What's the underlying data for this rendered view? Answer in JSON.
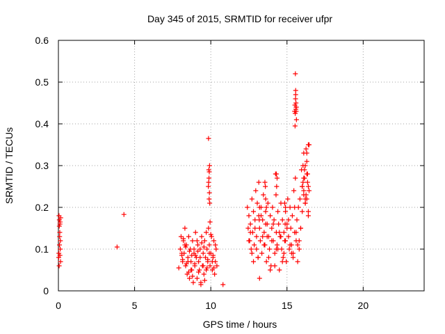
{
  "chart_data": {
    "type": "scatter",
    "title": "Day 345 of 2015, SRMTID for receiver ufpr",
    "xlabel": "GPS time / hours",
    "ylabel": "SRMTID / TECUs",
    "xlim": [
      0,
      24
    ],
    "ylim": [
      0,
      0.6
    ],
    "xticks": [
      0,
      5,
      10,
      15,
      20
    ],
    "yticks": [
      0,
      0.1,
      0.2,
      0.3,
      0.4,
      0.5,
      0.6
    ],
    "xtick_labels": [
      "0",
      "5",
      "10",
      "15",
      "20"
    ],
    "ytick_labels": [
      "0",
      "0.1",
      "0.2",
      "0.3",
      "0.4",
      "0.5",
      "0.6"
    ],
    "grid": true,
    "marker": "+",
    "color": "#ff0000",
    "series": [
      {
        "name": "SRMTID",
        "x": [
          0.02,
          0.04,
          0.06,
          0.08,
          0.1,
          0.12,
          0.14,
          0.05,
          0.07,
          0.09,
          0.11,
          0.03,
          0.13,
          0.15,
          0.06,
          0.1,
          3.85,
          4.3,
          7.9,
          8.0,
          8.05,
          8.1,
          8.15,
          8.2,
          8.25,
          8.3,
          8.35,
          8.4,
          8.45,
          8.5,
          8.55,
          8.6,
          8.65,
          8.7,
          8.75,
          8.8,
          8.85,
          8.9,
          8.95,
          9.0,
          9.05,
          9.1,
          9.15,
          9.2,
          9.25,
          9.3,
          9.35,
          9.4,
          9.45,
          9.5,
          9.55,
          9.6,
          9.65,
          9.7,
          9.75,
          9.8,
          9.85,
          9.9,
          9.95,
          10.0,
          10.05,
          10.1,
          10.15,
          10.2,
          10.25,
          10.3,
          10.35,
          10.4,
          10.8,
          8.1,
          8.3,
          8.5,
          8.7,
          8.9,
          9.1,
          9.3,
          9.5,
          9.7,
          9.9,
          10.1,
          10.3,
          8.2,
          8.4,
          8.6,
          8.8,
          9.0,
          9.2,
          9.4,
          9.6,
          9.8,
          10.0,
          10.2,
          8.15,
          8.35,
          8.55,
          8.75,
          8.95,
          9.15,
          9.35,
          9.55,
          9.75,
          9.95,
          10.15,
          9.85,
          9.87,
          9.9,
          9.92,
          9.88,
          9.86,
          9.91,
          9.89,
          9.93,
          9.84,
          12.4,
          12.45,
          12.5,
          12.55,
          12.6,
          12.65,
          12.7,
          12.75,
          12.8,
          12.85,
          12.9,
          12.95,
          13.0,
          13.05,
          13.1,
          13.15,
          13.2,
          13.25,
          13.3,
          13.35,
          13.4,
          13.45,
          13.5,
          13.55,
          13.6,
          13.65,
          13.7,
          13.75,
          13.8,
          13.85,
          13.9,
          13.95,
          14.0,
          14.05,
          14.1,
          14.15,
          14.2,
          14.25,
          14.3,
          14.35,
          14.4,
          14.45,
          14.5,
          14.55,
          14.6,
          14.65,
          14.7,
          14.75,
          14.8,
          14.85,
          14.9,
          14.95,
          15.0,
          15.05,
          15.1,
          15.15,
          15.2,
          15.25,
          15.3,
          15.35,
          15.4,
          15.45,
          15.5,
          15.55,
          15.6,
          15.65,
          15.7,
          15.75,
          15.8,
          15.85,
          15.9,
          15.95,
          16.0,
          16.05,
          16.1,
          16.15,
          16.2,
          16.25,
          16.3,
          16.35,
          16.4,
          16.45,
          12.5,
          12.7,
          12.9,
          13.1,
          13.3,
          13.5,
          13.7,
          13.9,
          14.1,
          14.3,
          14.5,
          14.7,
          14.9,
          15.1,
          15.3,
          15.5,
          15.7,
          15.9,
          16.1,
          16.3,
          12.6,
          12.8,
          13.0,
          13.2,
          13.4,
          13.6,
          13.8,
          14.0,
          14.2,
          14.4,
          14.6,
          14.8,
          15.0,
          15.2,
          15.4,
          15.6,
          15.8,
          16.0,
          16.2,
          16.4,
          15.5,
          15.52,
          15.55,
          15.57,
          15.6,
          15.62,
          15.58,
          15.54,
          15.56,
          15.59,
          15.61,
          15.53,
          15.57,
          15.6,
          16.0,
          16.1,
          16.2,
          16.3,
          16.35,
          16.4,
          16.45,
          16.25,
          16.15,
          16.05,
          16.3,
          16.4,
          16.2,
          16.1,
          13.55,
          13.6,
          13.65,
          13.58,
          14.3,
          14.35,
          14.32,
          14.28,
          14.85,
          14.9,
          14.88,
          13.15,
          13.2,
          13.18
        ],
        "y": [
          0.08,
          0.18,
          0.17,
          0.13,
          0.16,
          0.1,
          0.07,
          0.06,
          0.11,
          0.14,
          0.165,
          0.09,
          0.12,
          0.175,
          0.155,
          0.085,
          0.105,
          0.183,
          0.055,
          0.1,
          0.13,
          0.085,
          0.07,
          0.12,
          0.09,
          0.15,
          0.06,
          0.11,
          0.04,
          0.08,
          0.13,
          0.03,
          0.1,
          0.07,
          0.05,
          0.12,
          0.02,
          0.09,
          0.06,
          0.14,
          0.08,
          0.03,
          0.11,
          0.07,
          0.05,
          0.1,
          0.02,
          0.13,
          0.06,
          0.09,
          0.04,
          0.12,
          0.08,
          0.05,
          0.1,
          0.07,
          0.15,
          0.11,
          0.06,
          0.09,
          0.13,
          0.05,
          0.08,
          0.12,
          0.04,
          0.07,
          0.1,
          0.06,
          0.015,
          0.09,
          0.11,
          0.07,
          0.05,
          0.1,
          0.12,
          0.08,
          0.06,
          0.14,
          0.09,
          0.07,
          0.11,
          0.125,
          0.065,
          0.095,
          0.035,
          0.085,
          0.045,
          0.115,
          0.025,
          0.075,
          0.135,
          0.055,
          0.075,
          0.105,
          0.045,
          0.085,
          0.065,
          0.095,
          0.015,
          0.105,
          0.055,
          0.165,
          0.085,
          0.365,
          0.29,
          0.285,
          0.3,
          0.27,
          0.26,
          0.235,
          0.22,
          0.21,
          0.25,
          0.2,
          0.15,
          0.18,
          0.12,
          0.16,
          0.1,
          0.22,
          0.14,
          0.19,
          0.11,
          0.17,
          0.24,
          0.13,
          0.21,
          0.08,
          0.26,
          0.15,
          0.12,
          0.2,
          0.09,
          0.17,
          0.23,
          0.14,
          0.11,
          0.19,
          0.07,
          0.16,
          0.21,
          0.13,
          0.1,
          0.18,
          0.06,
          0.15,
          0.2,
          0.12,
          0.17,
          0.09,
          0.28,
          0.14,
          0.11,
          0.19,
          0.16,
          0.05,
          0.13,
          0.21,
          0.1,
          0.17,
          0.08,
          0.14,
          0.12,
          0.19,
          0.07,
          0.16,
          0.22,
          0.13,
          0.1,
          0.2,
          0.15,
          0.11,
          0.18,
          0.09,
          0.24,
          0.14,
          0.27,
          0.12,
          0.17,
          0.07,
          0.2,
          0.1,
          0.22,
          0.15,
          0.29,
          0.25,
          0.3,
          0.33,
          0.27,
          0.22,
          0.34,
          0.31,
          0.26,
          0.35,
          0.24,
          0.12,
          0.09,
          0.15,
          0.08,
          0.18,
          0.11,
          0.13,
          0.05,
          0.16,
          0.1,
          0.14,
          0.07,
          0.12,
          0.17,
          0.09,
          0.2,
          0.11,
          0.15,
          0.23,
          0.28,
          0.14,
          0.07,
          0.1,
          0.03,
          0.13,
          0.16,
          0.08,
          0.12,
          0.06,
          0.1,
          0.13,
          0.09,
          0.15,
          0.11,
          0.08,
          0.14,
          0.12,
          0.19,
          0.21,
          0.18,
          0.43,
          0.445,
          0.52,
          0.48,
          0.44,
          0.41,
          0.435,
          0.425,
          0.46,
          0.45,
          0.44,
          0.395,
          0.47,
          0.43,
          0.25,
          0.27,
          0.3,
          0.33,
          0.28,
          0.25,
          0.35,
          0.23,
          0.29,
          0.26,
          0.22,
          0.19,
          0.21,
          0.24,
          0.26,
          0.22,
          0.2,
          0.25,
          0.28,
          0.27,
          0.25,
          0.23,
          0.21,
          0.2,
          0.16,
          0.18,
          0.2,
          0.17
        ]
      }
    ]
  }
}
